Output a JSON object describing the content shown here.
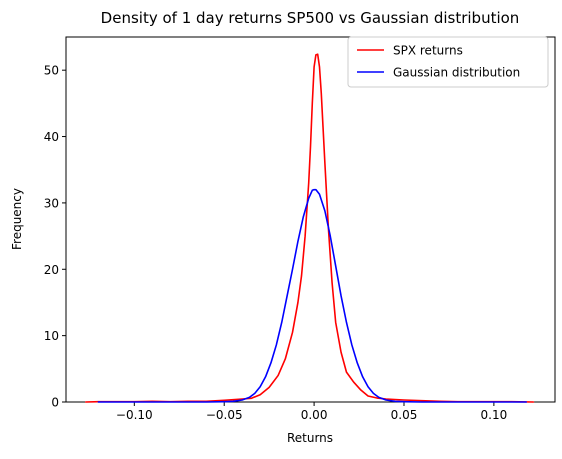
{
  "chart_data": {
    "type": "line",
    "title": "Density of 1 day returns SP500 vs Gaussian distribution",
    "xlabel": "Returns",
    "ylabel": "Frequency",
    "xlim": [
      -0.138,
      0.134
    ],
    "ylim": [
      0,
      55
    ],
    "xticks": [
      -0.1,
      -0.05,
      0.0,
      0.05,
      0.1
    ],
    "xtick_labels": [
      "−0.10",
      "−0.05",
      "0.00",
      "0.05",
      "0.10"
    ],
    "yticks": [
      0,
      10,
      20,
      30,
      40,
      50
    ],
    "ytick_labels": [
      "0",
      "10",
      "20",
      "30",
      "40",
      "50"
    ],
    "grid": false,
    "legend_position": "top-right",
    "series": [
      {
        "name": "SPX returns",
        "color": "#ff0000",
        "points": [
          [
            -0.127,
            0.0
          ],
          [
            -0.12,
            0.05
          ],
          [
            -0.11,
            0.05
          ],
          [
            -0.1,
            0.05
          ],
          [
            -0.09,
            0.1
          ],
          [
            -0.08,
            0.05
          ],
          [
            -0.07,
            0.1
          ],
          [
            -0.06,
            0.1
          ],
          [
            -0.05,
            0.25
          ],
          [
            -0.045,
            0.35
          ],
          [
            -0.04,
            0.45
          ],
          [
            -0.035,
            0.55
          ],
          [
            -0.03,
            1.1
          ],
          [
            -0.025,
            2.2
          ],
          [
            -0.02,
            4.0
          ],
          [
            -0.016,
            6.5
          ],
          [
            -0.012,
            10.5
          ],
          [
            -0.009,
            15.0
          ],
          [
            -0.007,
            19.0
          ],
          [
            -0.005,
            25.0
          ],
          [
            -0.003,
            33.0
          ],
          [
            -0.002,
            38.5
          ],
          [
            -0.001,
            45.0
          ],
          [
            0.0,
            50.5
          ],
          [
            0.001,
            52.3
          ],
          [
            0.002,
            52.4
          ],
          [
            0.003,
            50.5
          ],
          [
            0.004,
            46.5
          ],
          [
            0.006,
            36.0
          ],
          [
            0.008,
            26.0
          ],
          [
            0.01,
            18.0
          ],
          [
            0.012,
            12.0
          ],
          [
            0.015,
            7.5
          ],
          [
            0.018,
            4.5
          ],
          [
            0.022,
            3.0
          ],
          [
            0.026,
            1.8
          ],
          [
            0.03,
            0.9
          ],
          [
            0.035,
            0.6
          ],
          [
            0.04,
            0.45
          ],
          [
            0.05,
            0.3
          ],
          [
            0.06,
            0.2
          ],
          [
            0.07,
            0.1
          ],
          [
            0.08,
            0.05
          ],
          [
            0.09,
            0.05
          ],
          [
            0.1,
            0.05
          ],
          [
            0.11,
            0.05
          ],
          [
            0.122,
            0.0
          ]
        ]
      },
      {
        "name": "Gaussian distribution",
        "color": "#0000ff",
        "points": [
          [
            -0.12,
            0.0
          ],
          [
            -0.1,
            0.0
          ],
          [
            -0.08,
            0.0
          ],
          [
            -0.06,
            0.0
          ],
          [
            -0.05,
            0.05
          ],
          [
            -0.045,
            0.1
          ],
          [
            -0.04,
            0.3
          ],
          [
            -0.036,
            0.7
          ],
          [
            -0.033,
            1.3
          ],
          [
            -0.03,
            2.3
          ],
          [
            -0.027,
            3.8
          ],
          [
            -0.024,
            5.9
          ],
          [
            -0.021,
            8.6
          ],
          [
            -0.018,
            12.0
          ],
          [
            -0.015,
            16.0
          ],
          [
            -0.012,
            20.0
          ],
          [
            -0.009,
            24.2
          ],
          [
            -0.006,
            27.9
          ],
          [
            -0.003,
            30.7
          ],
          [
            -0.001,
            31.9
          ],
          [
            0.0,
            32.0
          ],
          [
            0.001,
            32.0
          ],
          [
            0.003,
            31.3
          ],
          [
            0.006,
            28.8
          ],
          [
            0.009,
            25.0
          ],
          [
            0.012,
            20.5
          ],
          [
            0.015,
            16.0
          ],
          [
            0.018,
            12.0
          ],
          [
            0.021,
            8.6
          ],
          [
            0.024,
            5.9
          ],
          [
            0.027,
            3.8
          ],
          [
            0.03,
            2.3
          ],
          [
            0.033,
            1.3
          ],
          [
            0.036,
            0.7
          ],
          [
            0.04,
            0.3
          ],
          [
            0.045,
            0.1
          ],
          [
            0.05,
            0.05
          ],
          [
            0.06,
            0.0
          ],
          [
            0.08,
            0.0
          ],
          [
            0.1,
            0.0
          ],
          [
            0.118,
            0.0
          ]
        ]
      }
    ]
  }
}
